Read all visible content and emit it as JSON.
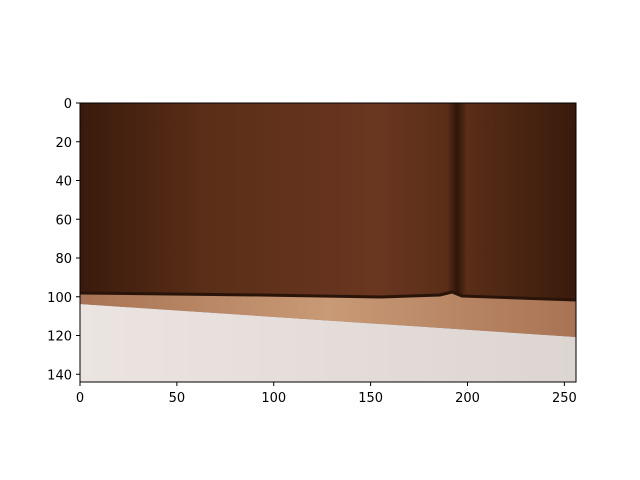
{
  "image_panel": {
    "content": "camera-frame",
    "colors": {
      "wall_top": "#5a2e18",
      "wall_mid": "#6a3620",
      "wall_dark": "#3a1a0c",
      "seam": "#2e160a",
      "edge_shadow": "#2a140a",
      "counter_light": "#c99a76",
      "counter_dark": "#a87354",
      "floor": "#ebe4e1",
      "floor_shadow": "#ddd5d1"
    }
  },
  "axes": {
    "x_ticks": [
      {
        "value": 0,
        "label": "0"
      },
      {
        "value": 50,
        "label": "50"
      },
      {
        "value": 100,
        "label": "100"
      },
      {
        "value": 150,
        "label": "150"
      },
      {
        "value": 200,
        "label": "200"
      },
      {
        "value": 250,
        "label": "250"
      }
    ],
    "y_ticks": [
      {
        "value": 0,
        "label": "0"
      },
      {
        "value": 20,
        "label": "20"
      },
      {
        "value": 40,
        "label": "40"
      },
      {
        "value": 60,
        "label": "60"
      },
      {
        "value": 80,
        "label": "80"
      },
      {
        "value": 100,
        "label": "100"
      },
      {
        "value": 120,
        "label": "120"
      },
      {
        "value": 140,
        "label": "140"
      }
    ],
    "x_range": [
      0,
      256
    ],
    "y_range": [
      0,
      144
    ],
    "y_inverted": true,
    "grid": false
  }
}
